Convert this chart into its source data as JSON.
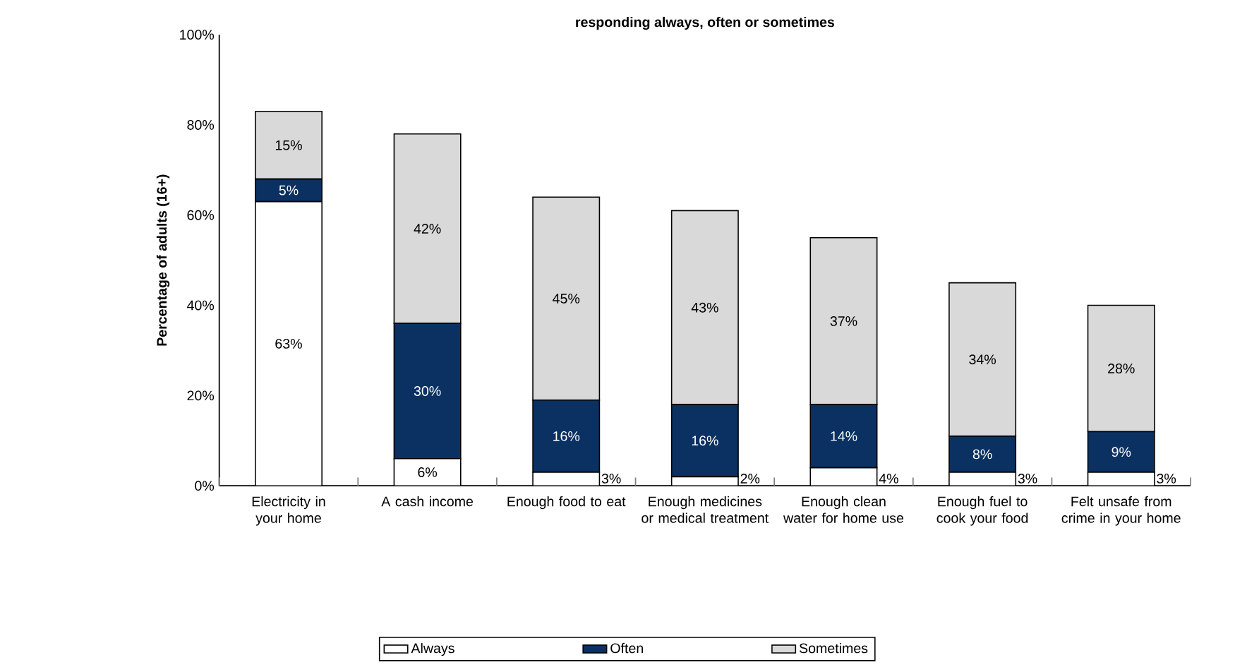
{
  "chart_data": {
    "type": "bar",
    "stacked": true,
    "title": "responding always, often or sometimes",
    "ylabel": "Percentage of adults (16+)",
    "categories": [
      "Electricity in your home",
      "A cash income",
      "Enough food to eat",
      "Enough medicines or medical treatment",
      "Enough clean water for home use",
      "Enough fuel to cook your food",
      "Felt unsafe from crime in your home"
    ],
    "series": [
      {
        "name": "Always",
        "color": "#ffffff",
        "values": [
          63,
          6,
          3,
          2,
          4,
          3,
          3
        ],
        "value_labels": [
          "63%",
          "6%",
          "3%",
          "2%",
          "4%",
          "3%",
          "3%"
        ]
      },
      {
        "name": "Often",
        "color": "#0a3161",
        "values": [
          5,
          30,
          16,
          16,
          14,
          8,
          9
        ],
        "value_labels": [
          "5%",
          "30%",
          "16%",
          "16%",
          "14%",
          "8%",
          "9%"
        ]
      },
      {
        "name": "Sometimes",
        "color": "#d9d9d9",
        "values": [
          15,
          42,
          45,
          43,
          37,
          34,
          28
        ],
        "value_labels": [
          "15%",
          "42%",
          "45%",
          "43%",
          "37%",
          "34%",
          "28%"
        ]
      }
    ],
    "ylim": [
      0,
      100
    ],
    "yticks": [
      {
        "value": 0,
        "label": "0%"
      },
      {
        "value": 20,
        "label": "20%"
      },
      {
        "value": 40,
        "label": "40%"
      },
      {
        "value": 60,
        "label": "60%"
      },
      {
        "value": 80,
        "label": "80%"
      },
      {
        "value": 100,
        "label": "100%"
      }
    ],
    "legend": "bottom"
  }
}
